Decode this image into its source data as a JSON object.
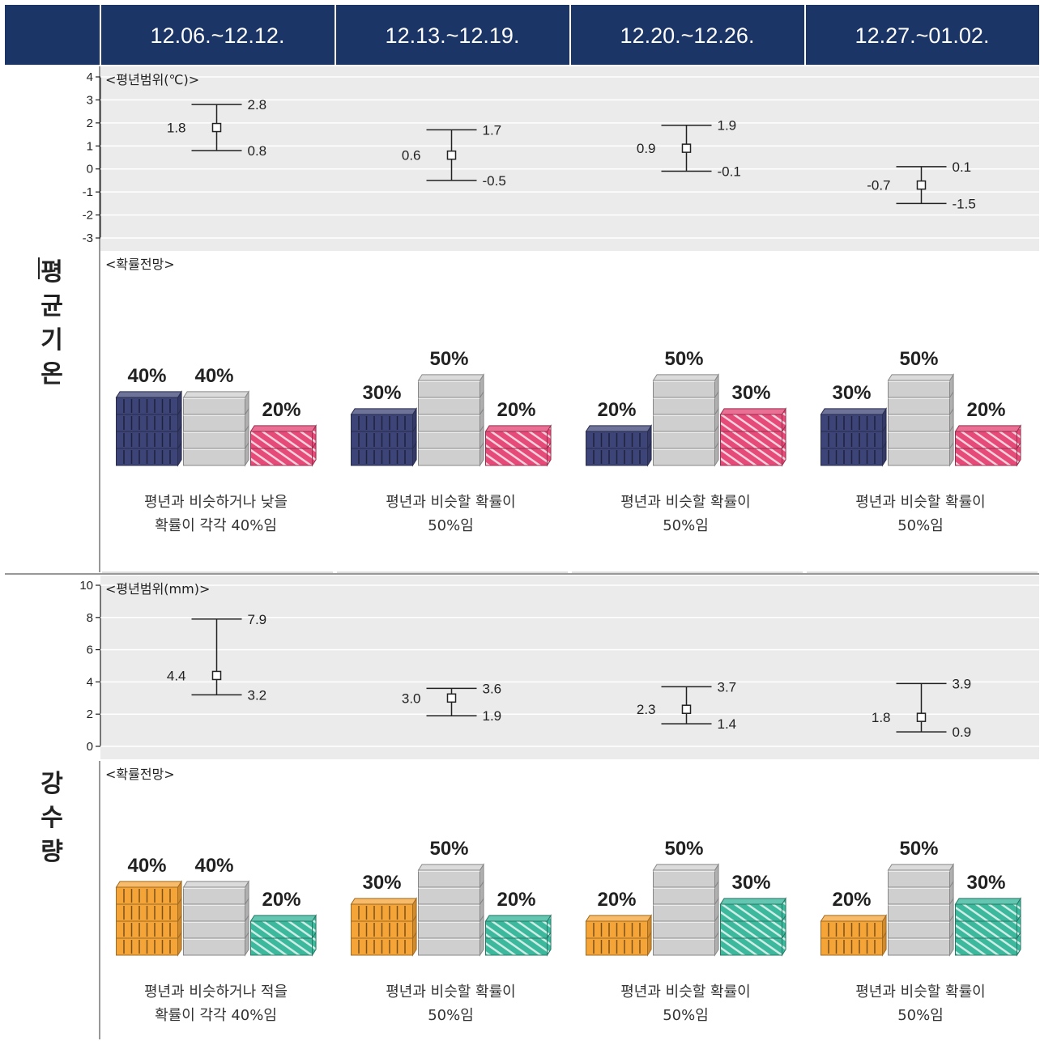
{
  "weeks": [
    "12.06.~12.12.",
    "12.13.~12.19.",
    "12.20.~12.26.",
    "12.27.~01.02."
  ],
  "side_labels": {
    "temperature": [
      "평",
      "균",
      "기",
      "온"
    ],
    "precipitation": [
      "강",
      "수",
      "량"
    ]
  },
  "colors": {
    "header": "#1b3566",
    "chart_bg": "#ebebec",
    "below": "#3d4477",
    "similar": "#cfcfd0",
    "above_temp": "#e64a79",
    "below_precip": "#f5a437",
    "above_precip": "#3cb89c"
  },
  "chart_data": [
    {
      "type": "scatter",
      "subtitle": "<평년범위(℃)>",
      "categories": [
        "12.06.~12.12.",
        "12.13.~12.19.",
        "12.20.~12.26.",
        "12.27.~01.02."
      ],
      "ylim": [
        -3,
        4
      ],
      "yticks": [
        "4",
        "3",
        "2",
        "1",
        "0",
        "-1",
        "-2",
        "-3"
      ],
      "mean": [
        1.8,
        0.6,
        0.9,
        -0.7
      ],
      "upper": [
        2.8,
        1.7,
        1.9,
        0.1
      ],
      "lower": [
        0.8,
        -0.5,
        -0.1,
        -1.5
      ],
      "mean_labels": [
        "1.8",
        "0.6",
        "0.9",
        "-0.7"
      ],
      "upper_labels": [
        "2.8",
        "1.7",
        "1.9",
        "0.1"
      ],
      "lower_labels": [
        "0.8",
        "-0.5",
        "-0.1",
        "-1.5"
      ],
      "grid": true
    },
    {
      "type": "bar",
      "subtitle": "<확률전망>",
      "categories": [
        "12.06.~12.12.",
        "12.13.~12.19.",
        "12.20.~12.26.",
        "12.27.~01.02."
      ],
      "values": [
        [
          40,
          40,
          20
        ],
        [
          30,
          50,
          20
        ],
        [
          20,
          50,
          30
        ],
        [
          30,
          50,
          20
        ]
      ],
      "labels": [
        [
          "40%",
          "40%",
          "20%"
        ],
        [
          "30%",
          "50%",
          "20%"
        ],
        [
          "20%",
          "50%",
          "30%"
        ],
        [
          "30%",
          "50%",
          "20%"
        ]
      ],
      "descriptions": [
        [
          "평년과 비슷하거나 낮을",
          "확률이 각각 40%임"
        ],
        [
          "평년과 비슷할 확률이",
          "50%임"
        ],
        [
          "평년과 비슷할 확률이",
          "50%임"
        ],
        [
          "평년과 비슷할 확률이",
          "50%임"
        ]
      ]
    },
    {
      "type": "scatter",
      "subtitle": "<평년범위(mm)>",
      "categories": [
        "12.06.~12.12.",
        "12.13.~12.19.",
        "12.20.~12.26.",
        "12.27.~01.02."
      ],
      "ylim": [
        0,
        10
      ],
      "yticks": [
        "10",
        "8",
        "6",
        "4",
        "2",
        "0"
      ],
      "mean": [
        4.4,
        3.0,
        2.3,
        1.8
      ],
      "upper": [
        7.9,
        3.6,
        3.7,
        3.9
      ],
      "lower": [
        3.2,
        1.9,
        1.4,
        0.9
      ],
      "mean_labels": [
        "4.4",
        "3.0",
        "2.3",
        "1.8"
      ],
      "upper_labels": [
        "7.9",
        "3.6",
        "3.7",
        "3.9"
      ],
      "lower_labels": [
        "3.2",
        "1.9",
        "1.4",
        "0.9"
      ],
      "grid": true
    },
    {
      "type": "bar",
      "subtitle": "<확률전망>",
      "categories": [
        "12.06.~12.12.",
        "12.13.~12.19.",
        "12.20.~12.26.",
        "12.27.~01.02."
      ],
      "values": [
        [
          40,
          40,
          20
        ],
        [
          30,
          50,
          20
        ],
        [
          20,
          50,
          30
        ],
        [
          20,
          50,
          30
        ]
      ],
      "labels": [
        [
          "40%",
          "40%",
          "20%"
        ],
        [
          "30%",
          "50%",
          "20%"
        ],
        [
          "20%",
          "50%",
          "30%"
        ],
        [
          "20%",
          "50%",
          "30%"
        ]
      ],
      "descriptions": [
        [
          "평년과 비슷하거나 적을",
          "확률이 각각 40%임"
        ],
        [
          "평년과 비슷할 확률이",
          "50%임"
        ],
        [
          "평년과 비슷할 확률이",
          "50%임"
        ],
        [
          "평년과 비슷할 확률이",
          "50%임"
        ]
      ]
    }
  ]
}
